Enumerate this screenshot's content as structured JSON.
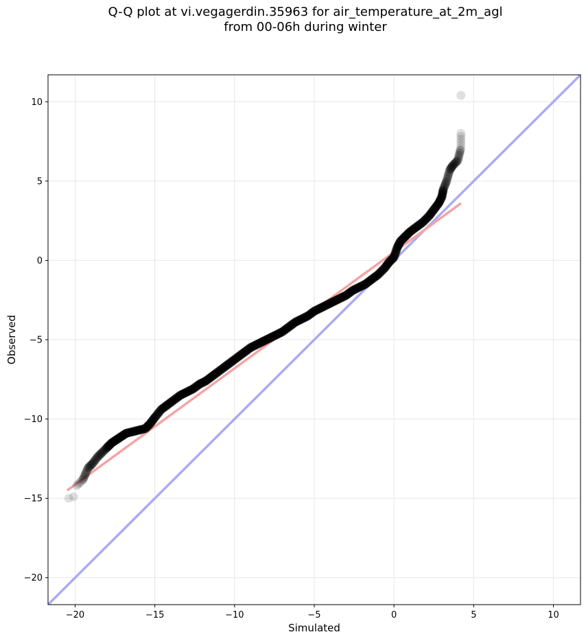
{
  "chart_data": {
    "type": "scatter",
    "title_line1": "Q-Q plot at vi.vegagerdin.35963 for air_temperature_at_2m_agl",
    "title_line2": "from 00-06h during winter",
    "xlabel": "Simulated",
    "ylabel": "Observed",
    "xlim": [
      -21.7,
      11.7
    ],
    "ylim": [
      -21.7,
      11.7
    ],
    "xticks": [
      -20,
      -15,
      -10,
      -5,
      0,
      5,
      10
    ],
    "yticks": [
      -20,
      -15,
      -10,
      -5,
      0,
      5,
      10
    ],
    "x_tick_labels": [
      "−20",
      "−15",
      "−10",
      "−5",
      "0",
      "5",
      "10"
    ],
    "y_tick_labels": [
      "−20",
      "−15",
      "−10",
      "−5",
      "0",
      "5",
      "10"
    ],
    "grid": true,
    "reference_line": {
      "type": "identity",
      "color": "#aaaaf5"
    },
    "fit_line": {
      "x": [
        -20.5,
        4.2
      ],
      "y": [
        -14.5,
        3.6
      ],
      "color": "#f4a3a3"
    },
    "point_color": "#000000",
    "points": {
      "x": [
        -20.4,
        -20.1,
        -19.9,
        -19.5,
        -19.2,
        -18.9,
        -18.6,
        -18.3,
        -18.0,
        -17.7,
        -17.4,
        -17.1,
        -16.8,
        -16.4,
        -16.0,
        -15.6,
        -15.3,
        -15.0,
        -14.6,
        -14.2,
        -13.8,
        -13.4,
        -13.0,
        -12.6,
        -12.2,
        -11.8,
        -11.4,
        -11.0,
        -10.6,
        -10.2,
        -9.8,
        -9.4,
        -9.0,
        -8.6,
        -8.2,
        -7.8,
        -7.4,
        -7.0,
        -6.6,
        -6.2,
        -5.8,
        -5.4,
        -5.0,
        -4.6,
        -4.2,
        -3.8,
        -3.4,
        -3.0,
        -2.6,
        -2.2,
        -1.8,
        -1.4,
        -1.0,
        -0.6,
        -0.3,
        0.0,
        0.2,
        0.4,
        0.7,
        1.0,
        1.4,
        1.8,
        2.2,
        2.5,
        2.8,
        3.0,
        3.1,
        3.3,
        3.5,
        3.7,
        4.0,
        4.2,
        4.2,
        4.2
      ],
      "y": [
        -15.0,
        -14.9,
        -14.2,
        -13.8,
        -13.1,
        -12.8,
        -12.4,
        -12.1,
        -11.8,
        -11.5,
        -11.3,
        -11.1,
        -10.9,
        -10.8,
        -10.7,
        -10.6,
        -10.3,
        -9.9,
        -9.4,
        -9.1,
        -8.8,
        -8.5,
        -8.3,
        -8.1,
        -7.8,
        -7.6,
        -7.3,
        -7.0,
        -6.7,
        -6.4,
        -6.1,
        -5.8,
        -5.5,
        -5.3,
        -5.1,
        -4.9,
        -4.7,
        -4.5,
        -4.2,
        -3.9,
        -3.7,
        -3.5,
        -3.2,
        -3.0,
        -2.8,
        -2.6,
        -2.4,
        -2.2,
        -1.9,
        -1.7,
        -1.5,
        -1.2,
        -0.9,
        -0.5,
        -0.1,
        0.2,
        0.8,
        1.2,
        1.5,
        1.8,
        2.1,
        2.4,
        2.8,
        3.2,
        3.6,
        4.0,
        4.5,
        5.0,
        5.7,
        6.0,
        6.3,
        7.1,
        8.0,
        10.4
      ]
    }
  }
}
